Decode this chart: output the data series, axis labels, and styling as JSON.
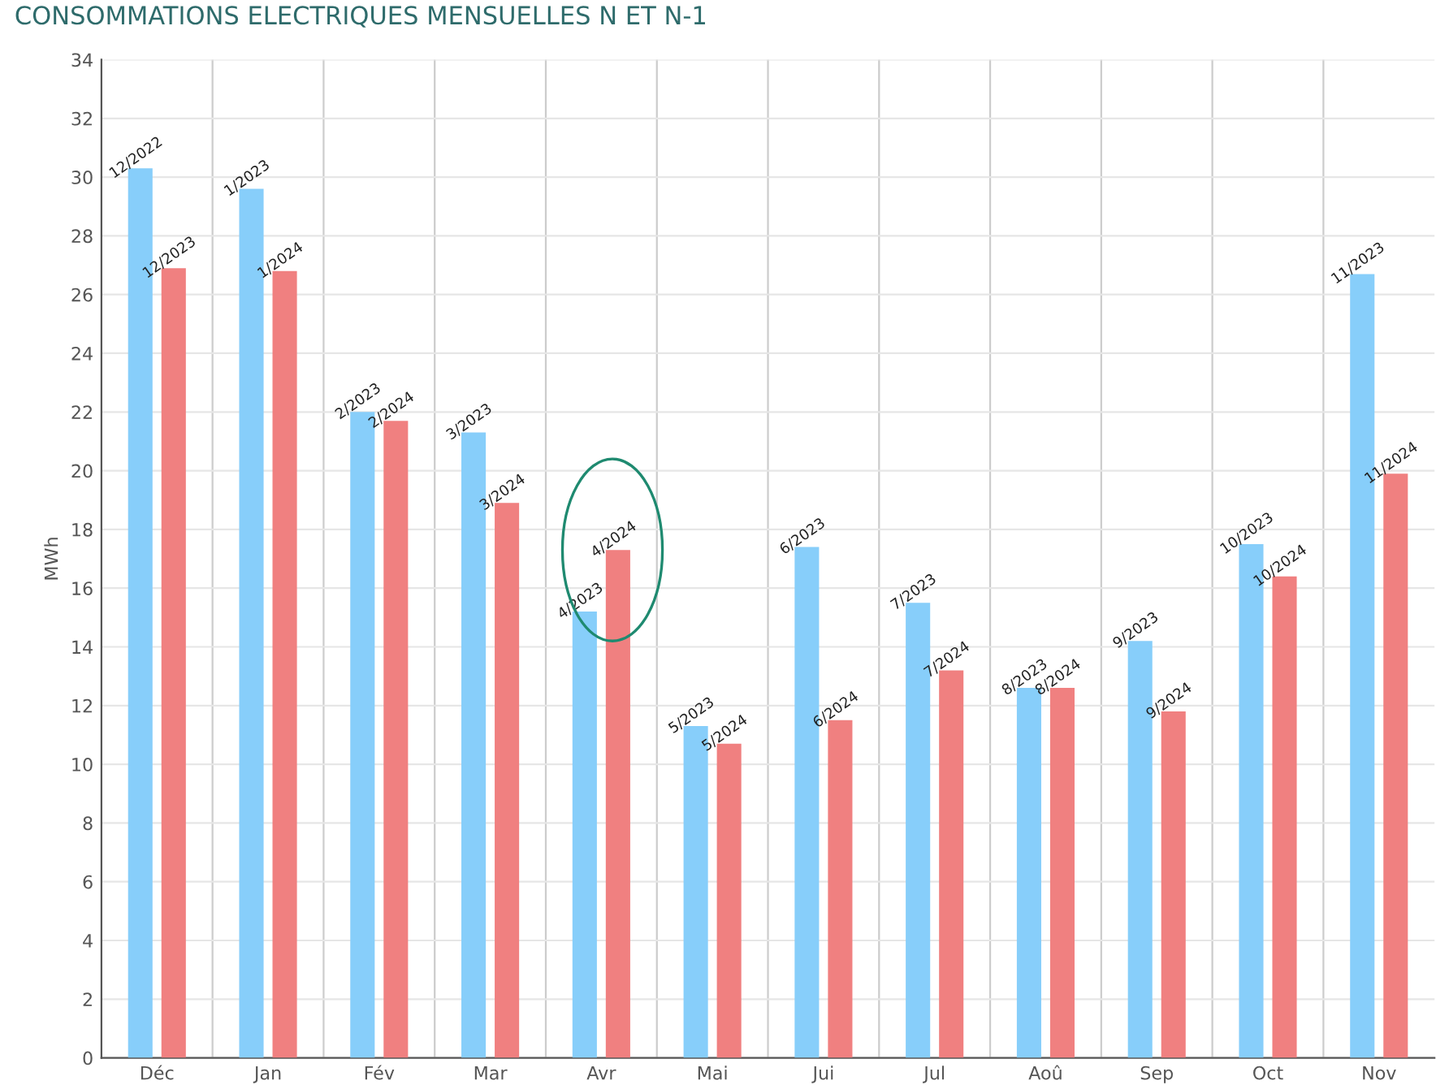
{
  "chart_data": {
    "type": "bar",
    "title": "CONSOMMATIONS ELECTRIQUES MENSUELLES N ET N-1",
    "ylabel": "MWh",
    "categories": [
      "Déc",
      "Jan",
      "Fév",
      "Mar",
      "Avr",
      "Mai",
      "Jui",
      "Jul",
      "Aoû",
      "Sep",
      "Oct",
      "Nov"
    ],
    "series": [
      {
        "color": "#87cefa",
        "values": [
          30.3,
          29.6,
          22.0,
          21.3,
          15.2,
          11.3,
          17.4,
          15.5,
          12.6,
          14.2,
          17.5,
          26.7
        ],
        "value_labels": [
          "12/2022",
          "1/2023",
          "2/2023",
          "3/2023",
          "4/2023",
          "5/2023",
          "6/2023",
          "7/2023",
          "8/2023",
          "9/2023",
          "10/2023",
          "11/2023"
        ]
      },
      {
        "color": "#f08080",
        "values": [
          26.9,
          26.8,
          21.7,
          18.9,
          17.3,
          10.7,
          11.5,
          13.2,
          12.6,
          11.8,
          16.4,
          19.9
        ],
        "value_labels": [
          "12/2023",
          "1/2024",
          "2/2024",
          "3/2024",
          "4/2024",
          "5/2024",
          "6/2024",
          "7/2024",
          "8/2024",
          "9/2024",
          "10/2024",
          "11/2024"
        ]
      }
    ],
    "ylim": [
      0,
      34
    ],
    "yticks": [
      0,
      2,
      4,
      6,
      8,
      10,
      12,
      14,
      16,
      18,
      20,
      22,
      24,
      26,
      28,
      30,
      32,
      34
    ],
    "grid": true
  }
}
